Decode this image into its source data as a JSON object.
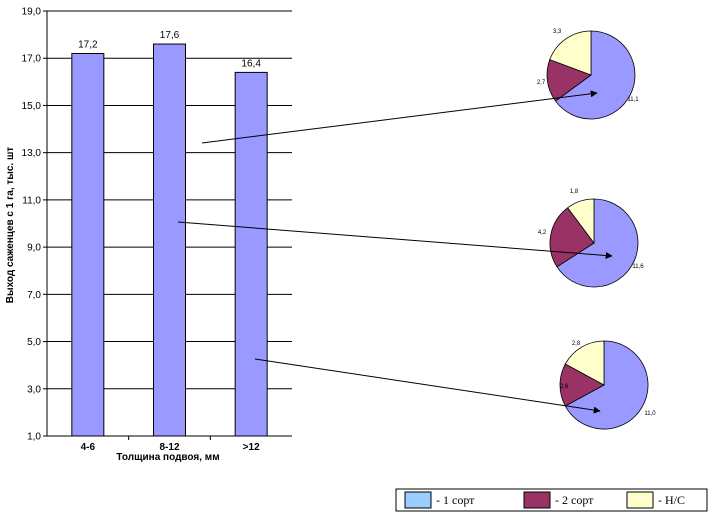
{
  "chart_data": [
    {
      "type": "bar",
      "categories": [
        "4-6",
        "8-12",
        ">12"
      ],
      "values": [
        17.2,
        17.6,
        16.4
      ],
      "data_labels": [
        "17,2",
        "17,6",
        "16,4"
      ],
      "xlabel": "Толщина подвоя, мм",
      "ylabel": "Выход саженцев с 1 га, тыс. шт",
      "ylim": [
        1.0,
        19.0
      ],
      "yticks": [
        1.0,
        3.0,
        5.0,
        7.0,
        9.0,
        11.0,
        13.0,
        15.0,
        17.0,
        19.0
      ],
      "ytick_labels": [
        "1,0",
        "3,0",
        "5,0",
        "7,0",
        "9,0",
        "11,0",
        "13,0",
        "15,0",
        "17,0",
        "19,0"
      ],
      "grid": true,
      "bar_color": "#9999ff"
    },
    {
      "type": "pie",
      "category": "4-6",
      "slices": [
        {
          "name": "- 1 сорт",
          "value": 11.1,
          "label": "11,1"
        },
        {
          "name": "- 2 сорт",
          "value": 2.7,
          "label": "2,7"
        },
        {
          "name": "- Н/С",
          "value": 3.3,
          "label": "3,3"
        }
      ]
    },
    {
      "type": "pie",
      "category": "8-12",
      "slices": [
        {
          "name": "- 1 сорт",
          "value": 11.6,
          "label": "11,6"
        },
        {
          "name": "- 2 сорт",
          "value": 4.2,
          "label": "4,2"
        },
        {
          "name": "- Н/С",
          "value": 1.8,
          "label": "1,8"
        }
      ]
    },
    {
      "type": "pie",
      "category": ">12",
      "slices": [
        {
          "name": "- 1 сорт",
          "value": 11.0,
          "label": "11,0"
        },
        {
          "name": "- 2 сорт",
          "value": 2.6,
          "label": "2,6"
        },
        {
          "name": "- Н/С",
          "value": 2.8,
          "label": "2,8"
        }
      ]
    }
  ],
  "legend": {
    "placement": "bottom-right",
    "items": [
      {
        "label": "- 1 сорт",
        "color": "#99ccff"
      },
      {
        "label": "- 2 сорт",
        "color": "#993366"
      },
      {
        "label": "- Н/С",
        "color": "#ffffcc"
      }
    ]
  },
  "pie_colors": [
    "#9999ff",
    "#993366",
    "#ffffcc"
  ]
}
